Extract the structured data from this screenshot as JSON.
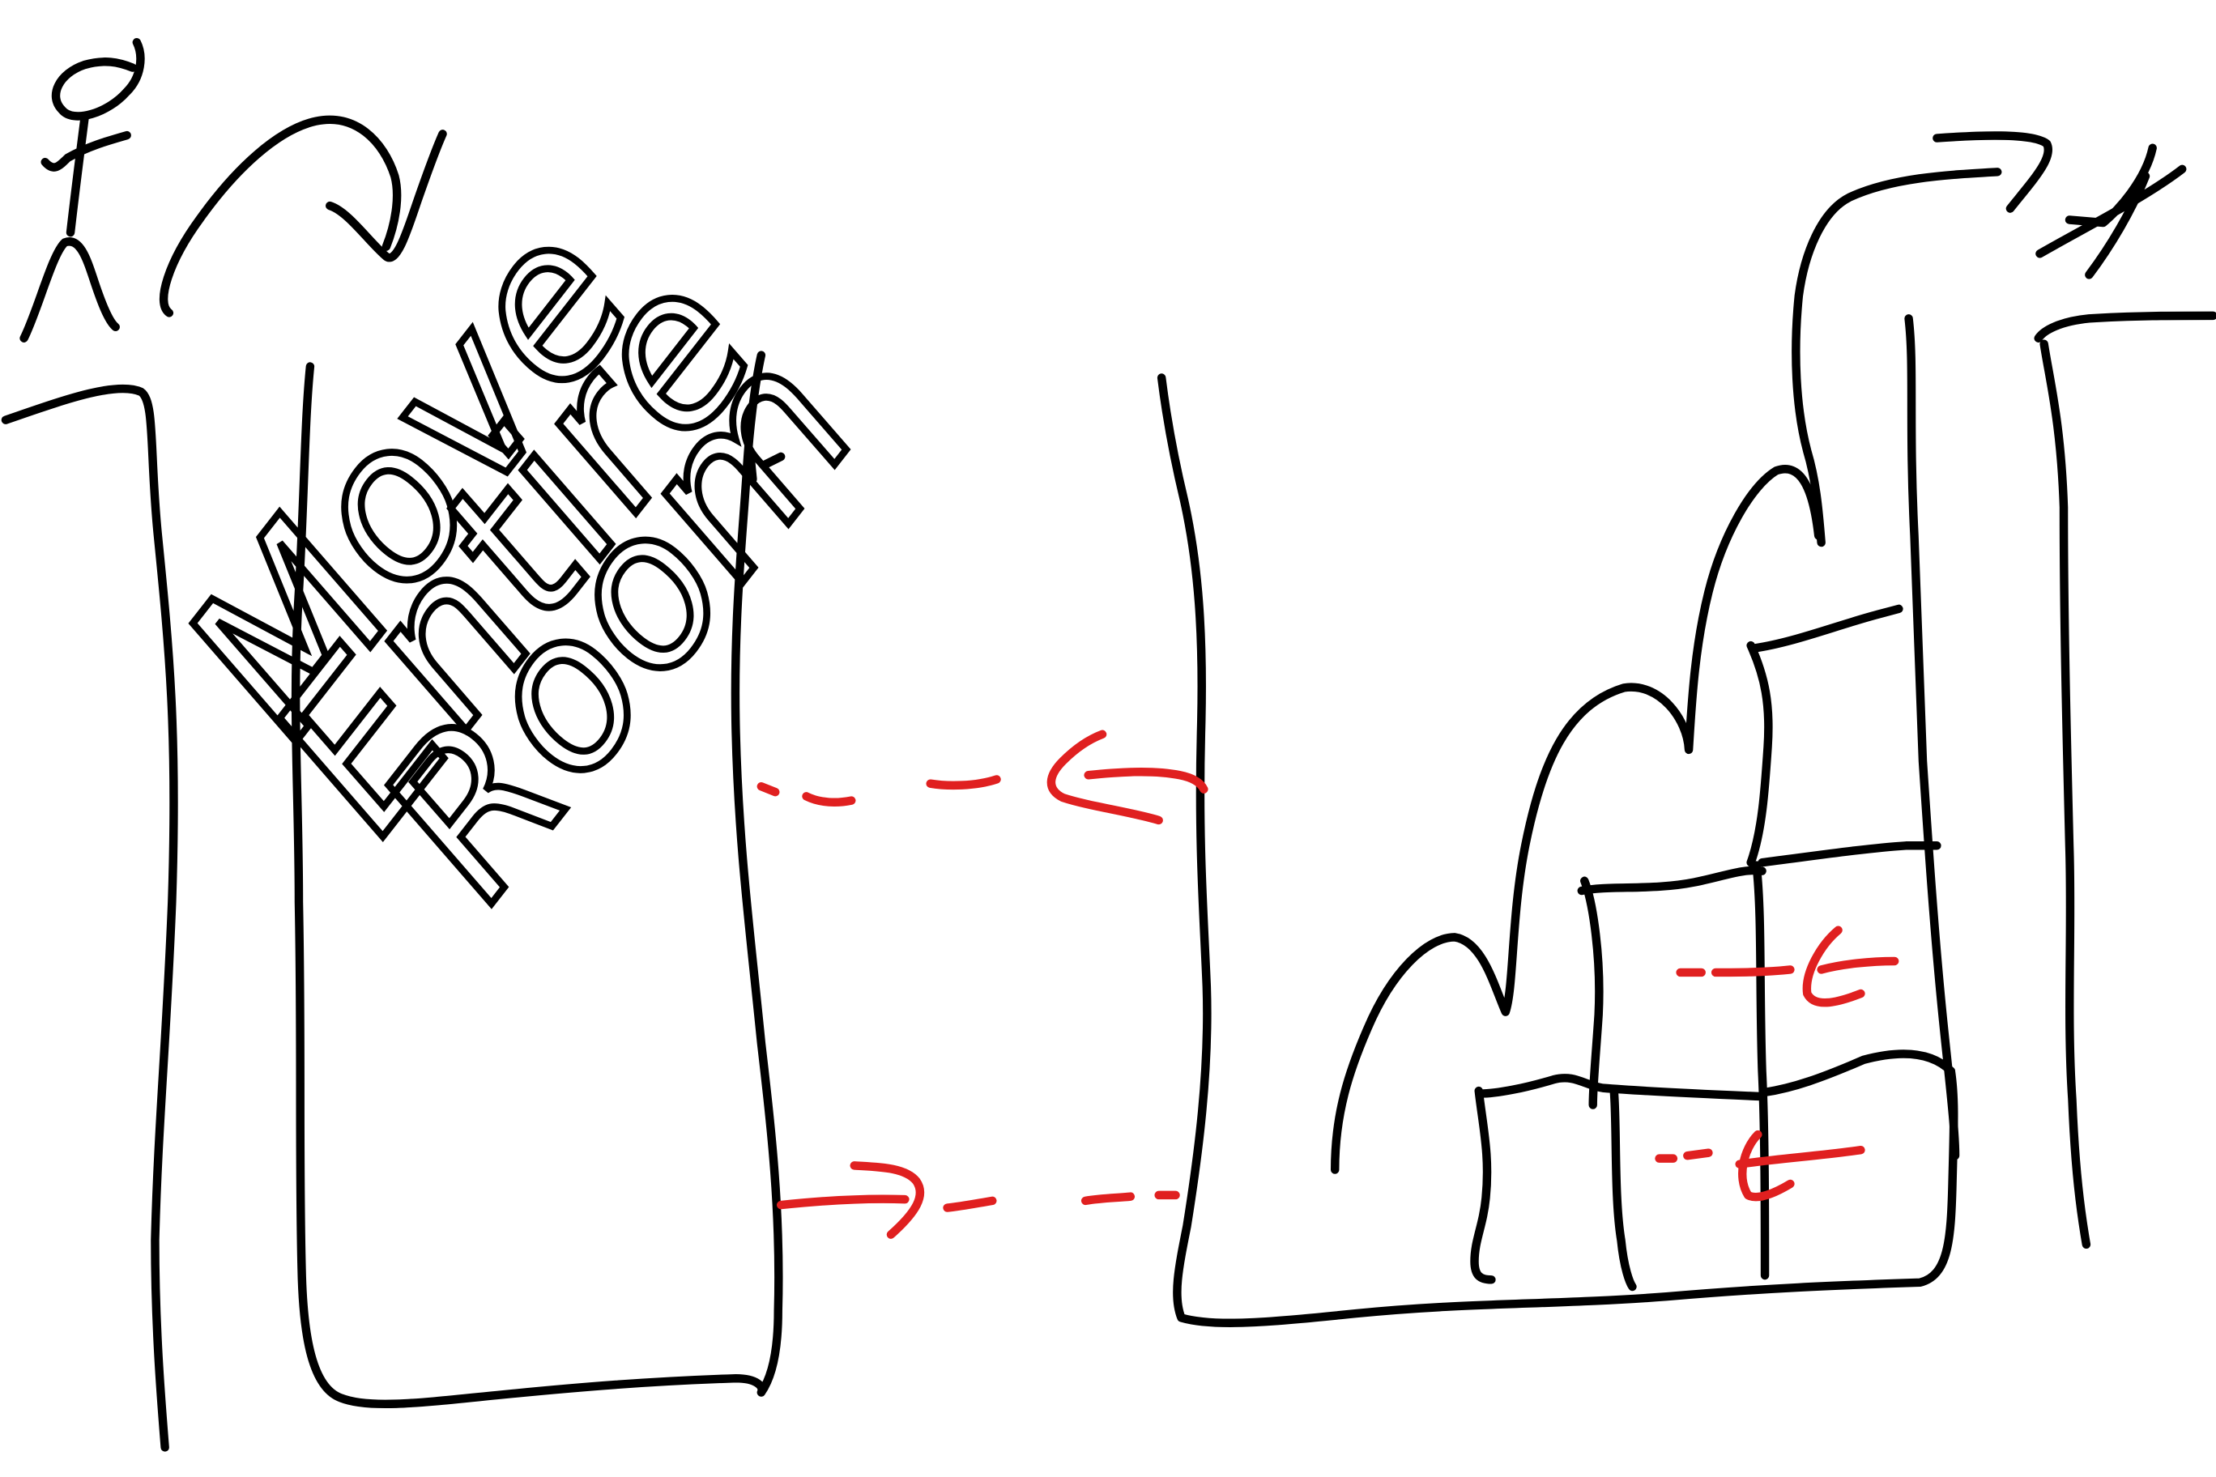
{
  "sketch": {
    "annotation_lines": [
      "Move",
      "Entire",
      "Room"
    ],
    "ink_colors": {
      "primary": "#000000",
      "highlight": "#e02020"
    },
    "elements": {
      "left_figure": "stick-figure",
      "right_figure": "stick-figure",
      "room_box": "rounded-rectangle",
      "staircase": "stacked-boxes"
    }
  }
}
